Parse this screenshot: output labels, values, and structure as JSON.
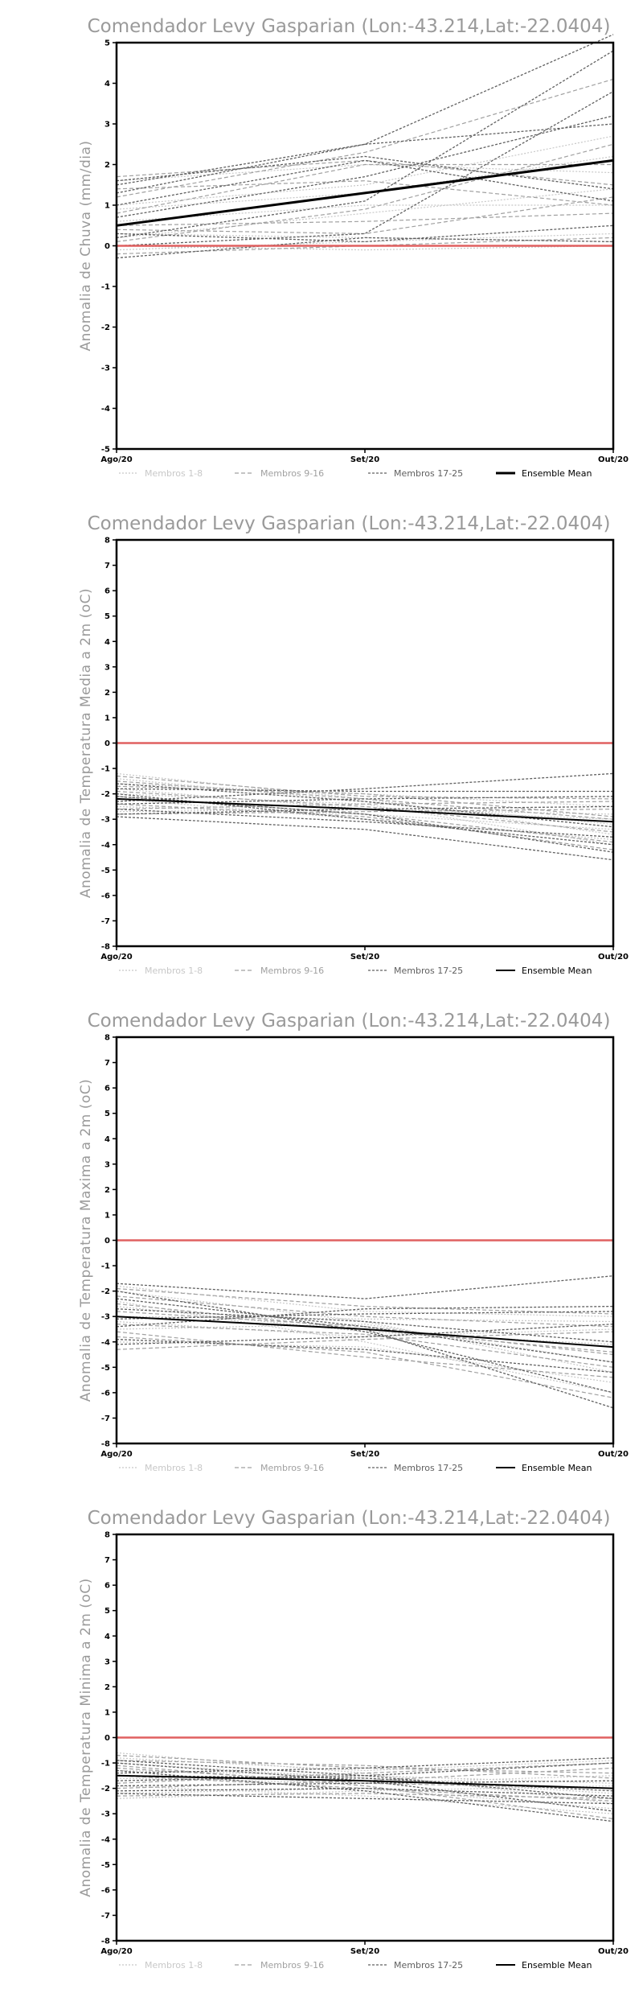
{
  "chart_data": [
    {
      "type": "line",
      "title": "Comendador Levy Gasparian (Lon:-43.214,Lat:-22.0404)",
      "ylabel": "Anomalia de Chuva (mm/dia)",
      "categories": [
        "Ago/20",
        "Set/20",
        "Out/20"
      ],
      "ylim": [
        -5,
        5
      ],
      "yticks": [
        -5,
        -4,
        -3,
        -2,
        -1,
        0,
        1,
        2,
        3,
        4,
        5
      ],
      "zero_line_color": "#e06060",
      "legend": [
        {
          "label": "Membros 1-8",
          "color": "#c8c8c8"
        },
        {
          "label": "Membros 9-16",
          "color": "#a0a0a0"
        },
        {
          "label": "Membros 17-25",
          "color": "#606060"
        },
        {
          "label": "Ensemble Mean",
          "color": "#000000"
        }
      ],
      "series": [
        {
          "group": 0,
          "values": [
            0.2,
            0.8,
            1.4
          ]
        },
        {
          "group": 0,
          "values": [
            1.0,
            1.5,
            2.7
          ]
        },
        {
          "group": 0,
          "values": [
            0.6,
            1.0,
            1.0
          ]
        },
        {
          "group": 0,
          "values": [
            -0.1,
            0.1,
            0.3
          ]
        },
        {
          "group": 0,
          "values": [
            1.6,
            2.0,
            1.8
          ]
        },
        {
          "group": 0,
          "values": [
            0.3,
            0.2,
            0.1
          ]
        },
        {
          "group": 0,
          "values": [
            0.9,
            1.3,
            2.2
          ]
        },
        {
          "group": 0,
          "values": [
            0.0,
            -0.1,
            0.0
          ]
        },
        {
          "group": 1,
          "values": [
            1.2,
            2.3,
            4.1
          ]
        },
        {
          "group": 1,
          "values": [
            0.5,
            0.6,
            0.8
          ]
        },
        {
          "group": 1,
          "values": [
            1.7,
            2.1,
            1.5
          ]
        },
        {
          "group": 1,
          "values": [
            0.1,
            0.9,
            2.5
          ]
        },
        {
          "group": 1,
          "values": [
            -0.2,
            0.0,
            0.2
          ]
        },
        {
          "group": 1,
          "values": [
            0.8,
            2.0,
            2.0
          ]
        },
        {
          "group": 1,
          "values": [
            0.4,
            0.3,
            1.2
          ]
        },
        {
          "group": 1,
          "values": [
            1.4,
            1.6,
            1.0
          ]
        },
        {
          "group": 2,
          "values": [
            1.5,
            2.5,
            5.2
          ]
        },
        {
          "group": 2,
          "values": [
            0.2,
            1.1,
            4.8
          ]
        },
        {
          "group": 2,
          "values": [
            1.0,
            2.1,
            1.1
          ]
        },
        {
          "group": 2,
          "values": [
            0.0,
            0.3,
            3.8
          ]
        },
        {
          "group": 2,
          "values": [
            1.3,
            2.5,
            3.0
          ]
        },
        {
          "group": 2,
          "values": [
            -0.3,
            0.2,
            0.1
          ]
        },
        {
          "group": 2,
          "values": [
            0.7,
            1.7,
            3.2
          ]
        },
        {
          "group": 2,
          "values": [
            1.6,
            2.2,
            1.4
          ]
        },
        {
          "group": 2,
          "values": [
            0.3,
            0.1,
            0.5
          ]
        }
      ],
      "mean": [
        0.5,
        1.3,
        2.1
      ]
    },
    {
      "type": "line",
      "title": "Comendador Levy Gasparian (Lon:-43.214,Lat:-22.0404)",
      "ylabel": "Anomalia de Temperatura Media a 2m (oC)",
      "categories": [
        "Ago/20",
        "Set/20",
        "Out/20"
      ],
      "ylim": [
        -8,
        8
      ],
      "yticks": [
        -8,
        -7,
        -6,
        -5,
        -4,
        -3,
        -2,
        -1,
        0,
        1,
        2,
        3,
        4,
        5,
        6,
        7,
        8
      ],
      "zero_line_color": "#e06060",
      "legend": [
        {
          "label": "Membros 1-8",
          "color": "#c8c8c8"
        },
        {
          "label": "Membros 9-16",
          "color": "#a0a0a0"
        },
        {
          "label": "Membros 17-25",
          "color": "#606060"
        },
        {
          "label": "Ensemble Mean",
          "color": "#000000"
        }
      ],
      "series": [
        {
          "group": 0,
          "values": [
            -1.2,
            -2.2,
            -3.6
          ]
        },
        {
          "group": 0,
          "values": [
            -1.4,
            -2.3,
            -3.2
          ]
        },
        {
          "group": 0,
          "values": [
            -1.8,
            -2.6,
            -2.8
          ]
        },
        {
          "group": 0,
          "values": [
            -2.0,
            -2.4,
            -4.0
          ]
        },
        {
          "group": 0,
          "values": [
            -2.5,
            -2.8,
            -3.4
          ]
        },
        {
          "group": 0,
          "values": [
            -1.6,
            -2.0,
            -2.5
          ]
        },
        {
          "group": 0,
          "values": [
            -2.2,
            -3.0,
            -3.8
          ]
        },
        {
          "group": 0,
          "values": [
            -2.7,
            -2.6,
            -3.0
          ]
        },
        {
          "group": 1,
          "values": [
            -1.3,
            -2.1,
            -2.2
          ]
        },
        {
          "group": 1,
          "values": [
            -1.9,
            -2.5,
            -3.5
          ]
        },
        {
          "group": 1,
          "values": [
            -2.4,
            -2.9,
            -4.2
          ]
        },
        {
          "group": 1,
          "values": [
            -2.8,
            -2.7,
            -2.6
          ]
        },
        {
          "group": 1,
          "values": [
            -1.5,
            -2.2,
            -3.0
          ]
        },
        {
          "group": 1,
          "values": [
            -2.1,
            -2.8,
            -3.9
          ]
        },
        {
          "group": 1,
          "values": [
            -2.6,
            -2.4,
            -2.3
          ]
        },
        {
          "group": 1,
          "values": [
            -1.7,
            -2.0,
            -2.9
          ]
        },
        {
          "group": 2,
          "values": [
            -2.3,
            -1.8,
            -1.2
          ]
        },
        {
          "group": 2,
          "values": [
            -1.8,
            -1.9,
            -1.9
          ]
        },
        {
          "group": 2,
          "values": [
            -2.9,
            -3.4,
            -4.6
          ]
        },
        {
          "group": 2,
          "values": [
            -2.1,
            -2.8,
            -4.3
          ]
        },
        {
          "group": 2,
          "values": [
            -2.6,
            -3.1,
            -3.7
          ]
        },
        {
          "group": 2,
          "values": [
            -1.6,
            -2.3,
            -3.3
          ]
        },
        {
          "group": 2,
          "values": [
            -2.4,
            -2.2,
            -2.1
          ]
        },
        {
          "group": 2,
          "values": [
            -2.8,
            -2.6,
            -2.5
          ]
        },
        {
          "group": 2,
          "values": [
            -2.0,
            -3.0,
            -4.0
          ]
        }
      ],
      "mean": [
        -2.2,
        -2.6,
        -3.1
      ]
    },
    {
      "type": "line",
      "title": "Comendador Levy Gasparian (Lon:-43.214,Lat:-22.0404)",
      "ylabel": "Anomalia de Temperatura Maxima a 2m (oC)",
      "categories": [
        "Ago/20",
        "Set/20",
        "Out/20"
      ],
      "ylim": [
        -8,
        8
      ],
      "yticks": [
        -8,
        -7,
        -6,
        -5,
        -4,
        -3,
        -2,
        -1,
        0,
        1,
        2,
        3,
        4,
        5,
        6,
        7,
        8
      ],
      "zero_line_color": "#e06060",
      "legend": [
        {
          "label": "Membros 1-8",
          "color": "#c8c8c8"
        },
        {
          "label": "Membros 9-16",
          "color": "#a0a0a0"
        },
        {
          "label": "Membros 17-25",
          "color": "#606060"
        },
        {
          "label": "Ensemble Mean",
          "color": "#000000"
        }
      ],
      "series": [
        {
          "group": 0,
          "values": [
            -2.0,
            -3.2,
            -5.2
          ]
        },
        {
          "group": 0,
          "values": [
            -2.6,
            -3.6,
            -4.1
          ]
        },
        {
          "group": 0,
          "values": [
            -3.2,
            -3.8,
            -3.5
          ]
        },
        {
          "group": 0,
          "values": [
            -4.0,
            -4.2,
            -5.6
          ]
        },
        {
          "group": 0,
          "values": [
            -1.8,
            -2.8,
            -3.0
          ]
        },
        {
          "group": 0,
          "values": [
            -3.5,
            -3.3,
            -4.8
          ]
        },
        {
          "group": 0,
          "values": [
            -2.4,
            -4.0,
            -6.0
          ]
        },
        {
          "group": 0,
          "values": [
            -3.0,
            -3.1,
            -3.2
          ]
        },
        {
          "group": 1,
          "values": [
            -2.2,
            -3.0,
            -3.4
          ]
        },
        {
          "group": 1,
          "values": [
            -3.8,
            -4.4,
            -6.2
          ]
        },
        {
          "group": 1,
          "values": [
            -2.8,
            -3.4,
            -4.5
          ]
        },
        {
          "group": 1,
          "values": [
            -4.3,
            -3.9,
            -3.6
          ]
        },
        {
          "group": 1,
          "values": [
            -1.9,
            -2.6,
            -2.9
          ]
        },
        {
          "group": 1,
          "values": [
            -3.3,
            -3.7,
            -5.0
          ]
        },
        {
          "group": 1,
          "values": [
            -2.5,
            -3.5,
            -4.4
          ]
        },
        {
          "group": 1,
          "values": [
            -3.6,
            -4.6,
            -5.4
          ]
        },
        {
          "group": 2,
          "values": [
            -1.7,
            -2.3,
            -1.4
          ]
        },
        {
          "group": 2,
          "values": [
            -3.0,
            -3.5,
            -6.6
          ]
        },
        {
          "group": 2,
          "values": [
            -2.3,
            -3.4,
            -4.8
          ]
        },
        {
          "group": 2,
          "values": [
            -3.4,
            -2.7,
            -2.6
          ]
        },
        {
          "group": 2,
          "values": [
            -4.1,
            -3.8,
            -3.3
          ]
        },
        {
          "group": 2,
          "values": [
            -2.0,
            -3.6,
            -6.0
          ]
        },
        {
          "group": 2,
          "values": [
            -2.7,
            -3.2,
            -4.0
          ]
        },
        {
          "group": 2,
          "values": [
            -3.9,
            -4.3,
            -5.2
          ]
        },
        {
          "group": 2,
          "values": [
            -3.1,
            -2.9,
            -2.8
          ]
        }
      ],
      "mean": [
        -3.0,
        -3.5,
        -4.2
      ]
    },
    {
      "type": "line",
      "title": "Comendador Levy Gasparian (Lon:-43.214,Lat:-22.0404)",
      "ylabel": "Anomalia de Temperatura Minima a 2m (oC)",
      "categories": [
        "Ago/20",
        "Set/20",
        "Out/20"
      ],
      "ylim": [
        -8,
        8
      ],
      "yticks": [
        -8,
        -7,
        -6,
        -5,
        -4,
        -3,
        -2,
        -1,
        0,
        1,
        2,
        3,
        4,
        5,
        6,
        7,
        8
      ],
      "zero_line_color": "#e06060",
      "legend": [
        {
          "label": "Membros 1-8",
          "color": "#c8c8c8"
        },
        {
          "label": "Membros 9-16",
          "color": "#a0a0a0"
        },
        {
          "label": "Membros 17-25",
          "color": "#606060"
        },
        {
          "label": "Ensemble Mean",
          "color": "#000000"
        }
      ],
      "series": [
        {
          "group": 0,
          "values": [
            -0.6,
            -1.4,
            -2.6
          ]
        },
        {
          "group": 0,
          "values": [
            -1.0,
            -1.6,
            -2.2
          ]
        },
        {
          "group": 0,
          "values": [
            -1.6,
            -1.8,
            -1.5
          ]
        },
        {
          "group": 0,
          "values": [
            -2.2,
            -2.0,
            -2.8
          ]
        },
        {
          "group": 0,
          "values": [
            -0.8,
            -1.3,
            -0.9
          ]
        },
        {
          "group": 0,
          "values": [
            -1.9,
            -2.3,
            -3.0
          ]
        },
        {
          "group": 0,
          "values": [
            -1.3,
            -1.5,
            -1.8
          ]
        },
        {
          "group": 0,
          "values": [
            -2.4,
            -2.1,
            -1.9
          ]
        },
        {
          "group": 1,
          "values": [
            -0.7,
            -1.2,
            -1.4
          ]
        },
        {
          "group": 1,
          "values": [
            -1.5,
            -2.0,
            -2.5
          ]
        },
        {
          "group": 1,
          "values": [
            -2.0,
            -1.7,
            -1.2
          ]
        },
        {
          "group": 1,
          "values": [
            -1.1,
            -1.9,
            -3.2
          ]
        },
        {
          "group": 1,
          "values": [
            -1.8,
            -1.4,
            -1.0
          ]
        },
        {
          "group": 1,
          "values": [
            -2.3,
            -2.2,
            -2.4
          ]
        },
        {
          "group": 1,
          "values": [
            -1.2,
            -1.8,
            -2.0
          ]
        },
        {
          "group": 1,
          "values": [
            -0.9,
            -1.1,
            -1.6
          ]
        },
        {
          "group": 2,
          "values": [
            -1.4,
            -1.2,
            -0.8
          ]
        },
        {
          "group": 2,
          "values": [
            -2.1,
            -2.0,
            -2.3
          ]
        },
        {
          "group": 2,
          "values": [
            -1.0,
            -1.7,
            -2.9
          ]
        },
        {
          "group": 2,
          "values": [
            -1.7,
            -1.5,
            -1.0
          ]
        },
        {
          "group": 2,
          "values": [
            -2.2,
            -2.4,
            -2.6
          ]
        },
        {
          "group": 2,
          "values": [
            -1.5,
            -1.6,
            -2.1
          ]
        },
        {
          "group": 2,
          "values": [
            -0.9,
            -1.5,
            -2.4
          ]
        },
        {
          "group": 2,
          "values": [
            -1.9,
            -1.8,
            -1.7
          ]
        },
        {
          "group": 2,
          "values": [
            -1.3,
            -2.1,
            -3.3
          ]
        }
      ],
      "mean": [
        -1.5,
        -1.7,
        -2.0
      ]
    }
  ]
}
